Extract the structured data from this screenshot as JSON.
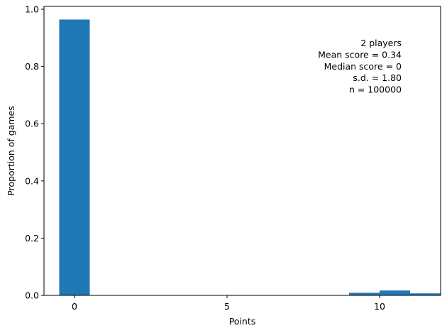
{
  "chart_data": {
    "type": "bar",
    "xlabel": "Points",
    "ylabel": "Proportion of games",
    "xlim": [
      -1,
      12
    ],
    "ylim": [
      0,
      1.01
    ],
    "x_ticks": [
      0,
      5,
      10
    ],
    "y_ticks": [
      0.0,
      0.2,
      0.4,
      0.6,
      0.8,
      1.0
    ],
    "bar_width": 1,
    "color": "#1f77b4",
    "bars": [
      {
        "x": 0,
        "value": 0.964
      },
      {
        "x": 9.5,
        "value": 0.009
      },
      {
        "x": 10.5,
        "value": 0.017
      },
      {
        "x": 11.5,
        "value": 0.007
      }
    ],
    "annotation": [
      "2 players",
      "Mean score = 0.34",
      "Median score = 0",
      "s.d. = 1.80",
      "n = 100000"
    ],
    "grid": false
  }
}
